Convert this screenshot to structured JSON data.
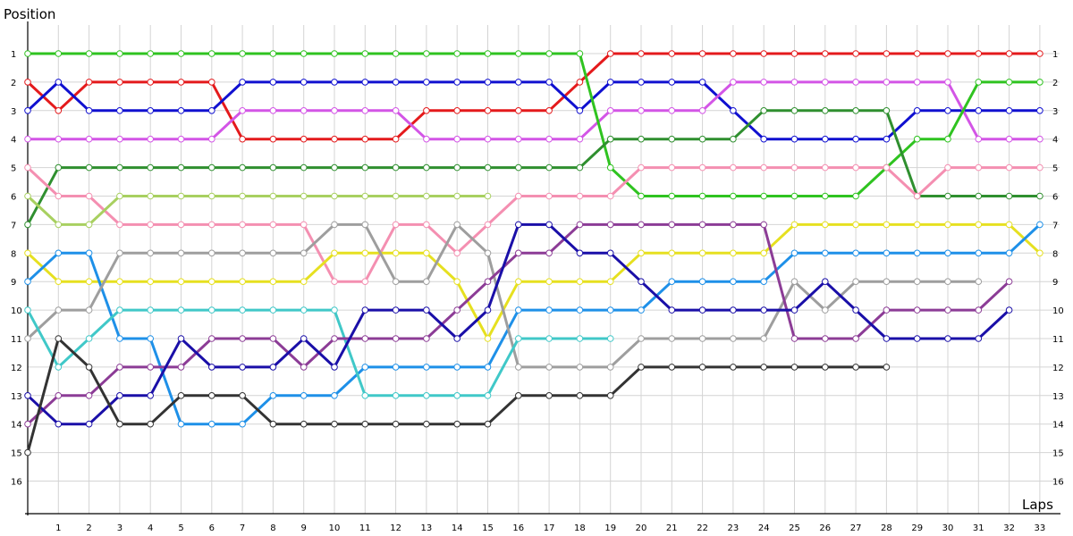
{
  "chart_data": {
    "type": "line",
    "ylabel": "Position",
    "xlabel": "Laps",
    "x_ticks": [
      1,
      2,
      3,
      4,
      5,
      6,
      7,
      8,
      9,
      10,
      11,
      12,
      13,
      14,
      15,
      16,
      17,
      18,
      19,
      20,
      21,
      22,
      23,
      24,
      25,
      26,
      27,
      28,
      29,
      30,
      31,
      32,
      33
    ],
    "y_ticks": [
      1,
      2,
      3,
      4,
      5,
      6,
      7,
      8,
      9,
      10,
      11,
      12,
      13,
      14,
      15,
      16
    ],
    "xlim": [
      0,
      33.5
    ],
    "ylim_inverted": [
      0.2,
      17
    ],
    "grid": true,
    "series": [
      {
        "color": "#e41a1c",
        "values": [
          2,
          3,
          2,
          2,
          2,
          2,
          2,
          4,
          4,
          4,
          4,
          4,
          4,
          3,
          3,
          3,
          3,
          3,
          2,
          1,
          1,
          1,
          1,
          1,
          1,
          1,
          1,
          1,
          1,
          1,
          1,
          1,
          1,
          1
        ]
      },
      {
        "color": "#1010d0",
        "values": [
          3,
          2,
          3,
          3,
          3,
          3,
          3,
          2,
          2,
          2,
          2,
          2,
          2,
          2,
          2,
          2,
          2,
          2,
          3,
          2,
          2,
          2,
          2,
          3,
          4,
          4,
          4,
          4,
          4,
          3,
          3,
          3,
          3,
          3
        ]
      },
      {
        "color": "#d355e6",
        "values": [
          4,
          4,
          4,
          4,
          4,
          4,
          4,
          3,
          3,
          3,
          3,
          3,
          3,
          4,
          4,
          4,
          4,
          4,
          4,
          3,
          3,
          3,
          3,
          2,
          2,
          2,
          2,
          2,
          2,
          2,
          2,
          4,
          4,
          4
        ]
      },
      {
        "color": "#2fc320",
        "values": [
          1,
          1,
          1,
          1,
          1,
          1,
          1,
          1,
          1,
          1,
          1,
          1,
          1,
          1,
          1,
          1,
          1,
          1,
          1,
          5,
          6,
          6,
          6,
          6,
          6,
          6,
          6,
          6,
          5,
          4,
          4,
          2,
          2,
          2
        ]
      },
      {
        "color": "#2f8f2f",
        "values": [
          7,
          5,
          5,
          5,
          5,
          5,
          5,
          5,
          5,
          5,
          5,
          5,
          5,
          5,
          5,
          5,
          5,
          5,
          5,
          4,
          4,
          4,
          4,
          4,
          3,
          3,
          3,
          3,
          3,
          6,
          6,
          6,
          6,
          6
        ]
      },
      {
        "color": "#f48fb1",
        "values": [
          5,
          6,
          6,
          7,
          7,
          7,
          7,
          7,
          7,
          7,
          9,
          9,
          7,
          7,
          8,
          7,
          6,
          6,
          6,
          6,
          5,
          5,
          5,
          5,
          5,
          5,
          5,
          5,
          5,
          6,
          5,
          5,
          5,
          5
        ]
      },
      {
        "color": "#a8d060",
        "values": [
          6,
          7,
          7,
          6,
          6,
          6,
          6,
          6,
          6,
          6,
          6,
          6,
          6,
          6,
          6,
          6
        ]
      },
      {
        "color": "#e6e020",
        "values": [
          8,
          9,
          9,
          9,
          9,
          9,
          9,
          9,
          9,
          9,
          8,
          8,
          8,
          8,
          9,
          11,
          9,
          9,
          9,
          9,
          8,
          8,
          8,
          8,
          8,
          7,
          7,
          7,
          7,
          7,
          7,
          7,
          7,
          8
        ]
      },
      {
        "color": "#1e90e8",
        "values": [
          9,
          8,
          8,
          11,
          11,
          14,
          14,
          14,
          13,
          13,
          13,
          12,
          12,
          12,
          12,
          12,
          10,
          10,
          10,
          10,
          10,
          9,
          9,
          9,
          9,
          8,
          8,
          8,
          8,
          8,
          8,
          8,
          8,
          7
        ]
      },
      {
        "color": "#9e9e9e",
        "values": [
          11,
          10,
          10,
          8,
          8,
          8,
          8,
          8,
          8,
          8,
          7,
          7,
          9,
          9,
          7,
          8,
          12,
          12,
          12,
          12,
          11,
          11,
          11,
          11,
          11,
          9,
          10,
          9,
          9,
          9,
          9,
          9
        ]
      },
      {
        "color": "#40c8c8",
        "values": [
          10,
          12,
          11,
          10,
          10,
          10,
          10,
          10,
          10,
          10,
          10,
          13,
          13,
          13,
          13,
          13,
          11,
          11,
          11,
          11
        ]
      },
      {
        "color": "#8c3c96",
        "values": [
          14,
          13,
          13,
          12,
          12,
          12,
          11,
          11,
          11,
          12,
          11,
          11,
          11,
          11,
          10,
          9,
          8,
          8,
          7,
          7,
          7,
          7,
          7,
          7,
          7,
          11,
          11,
          11,
          10,
          10,
          10,
          10,
          9
        ]
      },
      {
        "color": "#1a0fa8",
        "values": [
          13,
          14,
          14,
          13,
          13,
          11,
          12,
          12,
          12,
          11,
          12,
          10,
          10,
          10,
          11,
          10,
          7,
          7,
          8,
          8,
          9,
          10,
          10,
          10,
          10,
          10,
          9,
          10,
          11,
          11,
          11,
          11,
          10
        ]
      },
      {
        "color": "#333333",
        "values": [
          15,
          11,
          12,
          14,
          14,
          13,
          13,
          13,
          14,
          14,
          14,
          14,
          14,
          14,
          14,
          14,
          13,
          13,
          13,
          13,
          12,
          12,
          12,
          12,
          12,
          12,
          12,
          12,
          12
        ]
      }
    ]
  }
}
